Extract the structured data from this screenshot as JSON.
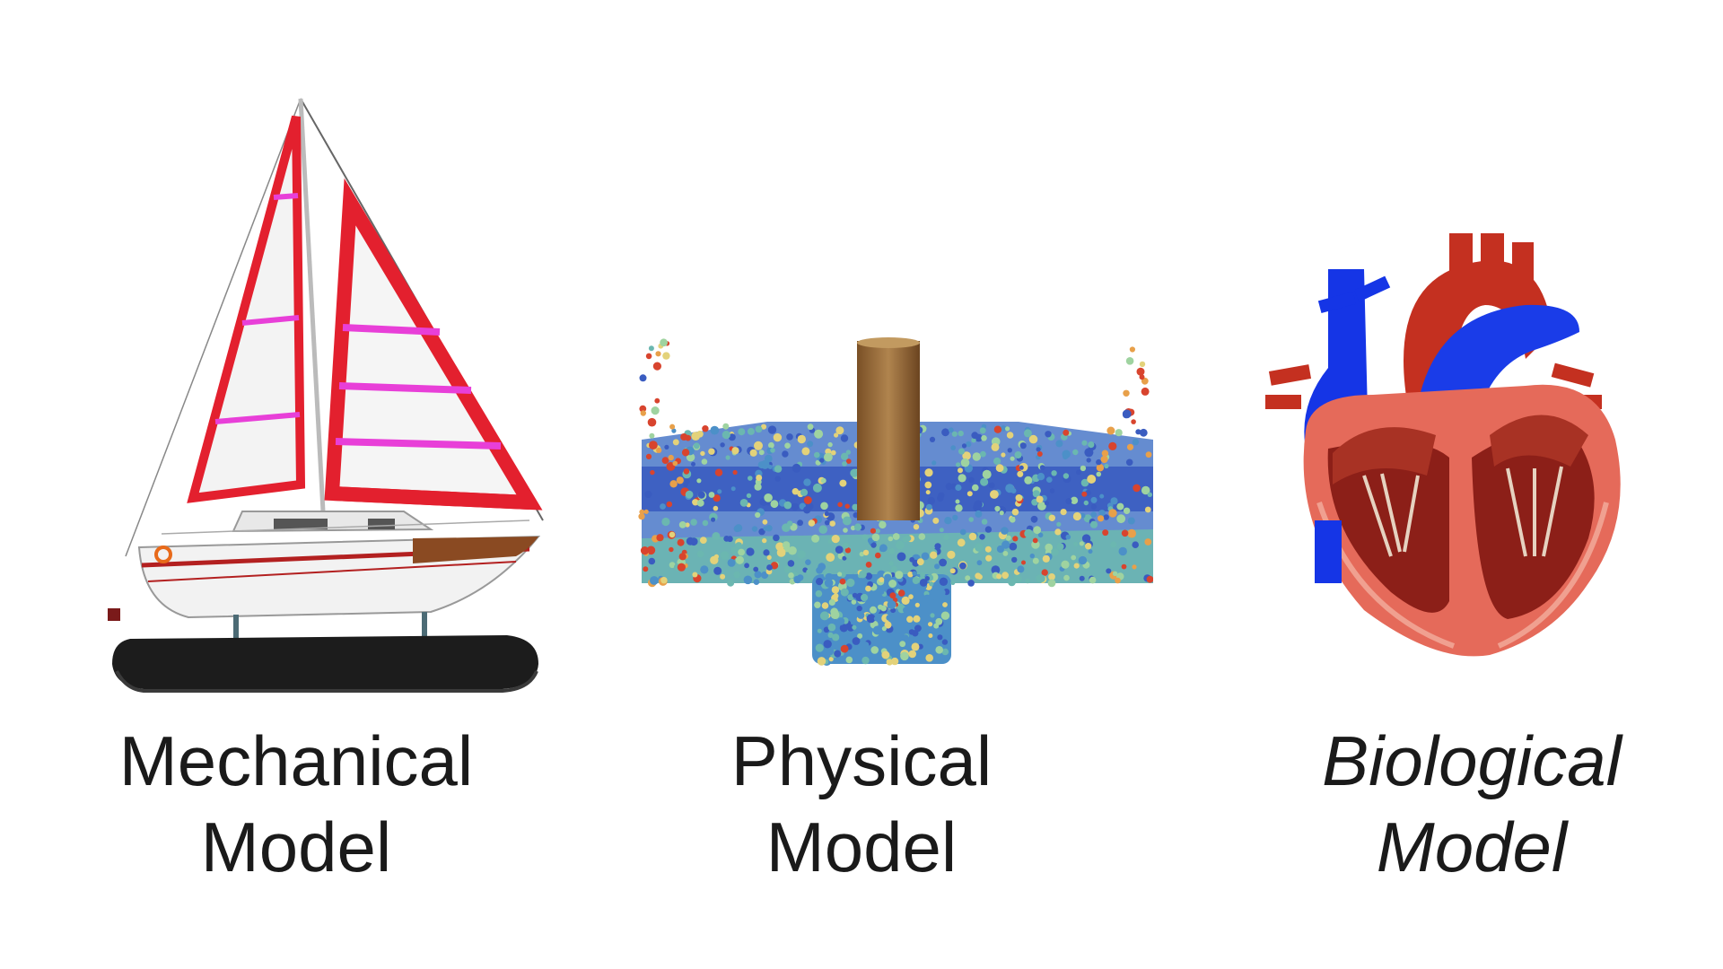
{
  "panels": [
    {
      "id": "mechanical",
      "line1": "Mechanical",
      "line2": "Model",
      "italic": false,
      "figure": "sailboat-model"
    },
    {
      "id": "physical",
      "line1": "Physical",
      "line2": "Model",
      "italic": false,
      "figure": "particle-simulation"
    },
    {
      "id": "biological",
      "line1": "Biological",
      "line2": "Model",
      "italic": true,
      "figure": "heart-cross-section"
    }
  ],
  "colors": {
    "sail_red": "#e3202e",
    "sail_stripe": "#e83fd8",
    "hull": "#f2f2f2",
    "stand": "#1c1c1c",
    "post": "#9a6b3a",
    "vein_blue": "#1535e6",
    "muscle_red": "#c43020",
    "text": "#1a1a1a"
  }
}
